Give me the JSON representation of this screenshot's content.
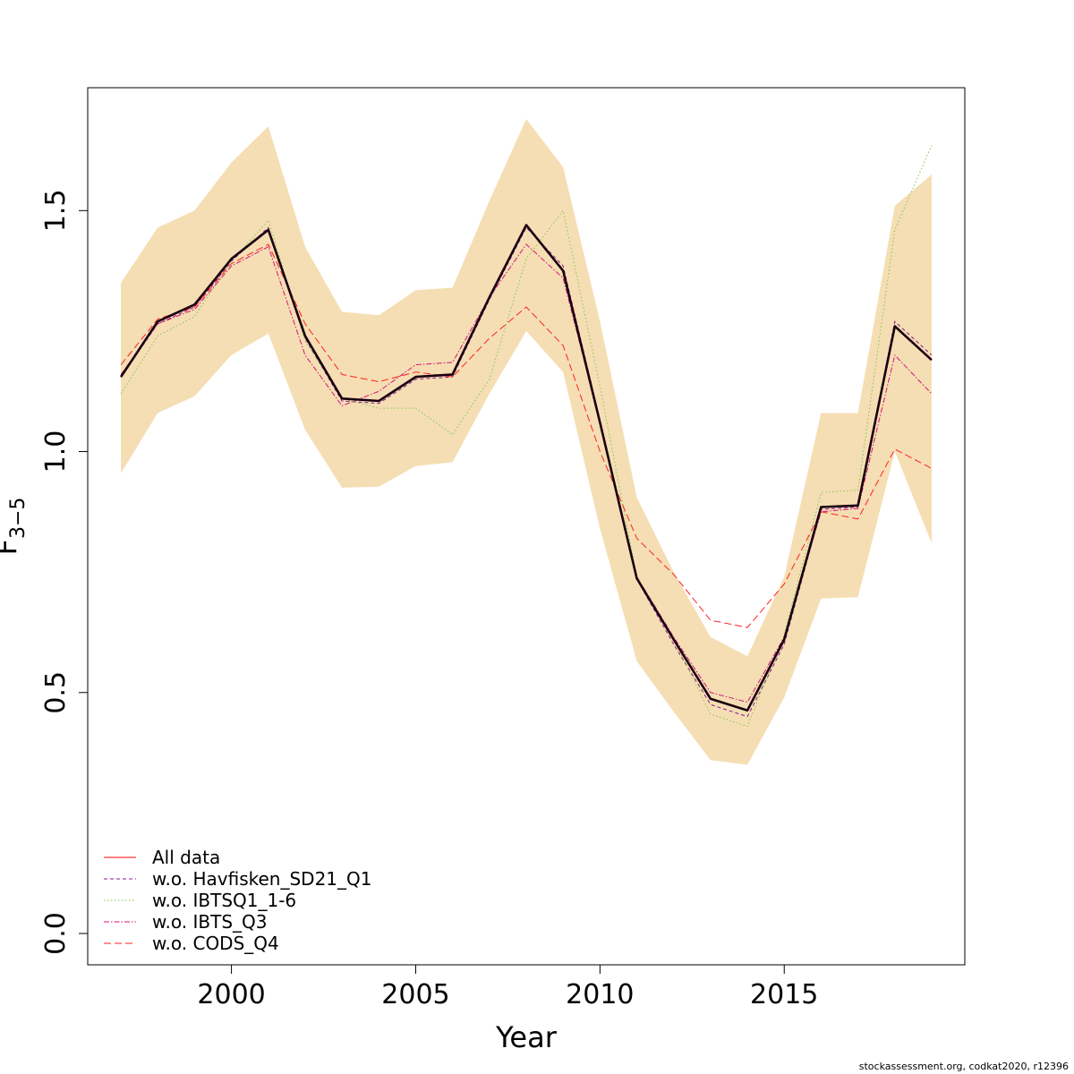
{
  "chart_data": {
    "type": "line",
    "title": "",
    "xlabel": "Year",
    "ylabel": "F",
    "ylabel_subscript": "3−5",
    "xlim": [
      1996.1,
      2019.9
    ],
    "ylim": [
      -0.065,
      1.755
    ],
    "x_ticks": [
      2000,
      2005,
      2010,
      2015
    ],
    "x_tick_labels": [
      "2000",
      "2005",
      "2010",
      "2015"
    ],
    "y_ticks": [
      0,
      0.5,
      1,
      1.5
    ],
    "y_tick_labels": [
      "0.0",
      "0.5",
      "1.0",
      "1.5"
    ],
    "x": [
      1997,
      1998,
      1999,
      2000,
      2001,
      2002,
      2003,
      2004,
      2005,
      2006,
      2007,
      2008,
      2009,
      2010,
      2011,
      2012,
      2013,
      2014,
      2015,
      2016,
      2017,
      2018,
      2019
    ],
    "band": {
      "color": "#f5deb3",
      "lower": [
        0.955,
        1.08,
        1.115,
        1.2,
        1.245,
        1.045,
        0.925,
        0.927,
        0.97,
        0.978,
        1.12,
        1.25,
        1.165,
        0.84,
        0.565,
        0.46,
        0.36,
        0.35,
        0.49,
        0.695,
        0.698,
        1.0,
        0.81
      ],
      "upper": [
        1.35,
        1.465,
        1.5,
        1.6,
        1.675,
        1.425,
        1.29,
        1.283,
        1.335,
        1.34,
        1.52,
        1.69,
        1.59,
        1.27,
        0.905,
        0.75,
        0.615,
        0.575,
        0.74,
        1.08,
        1.08,
        1.51,
        1.575
      ]
    },
    "main_line": {
      "name": "Estimate",
      "color": "#1a0011",
      "values": [
        1.155,
        1.27,
        1.305,
        1.4,
        1.46,
        1.24,
        1.11,
        1.105,
        1.155,
        1.16,
        1.32,
        1.47,
        1.375,
        1.06,
        0.737,
        0.61,
        0.487,
        0.463,
        0.61,
        0.885,
        0.888,
        1.26,
        1.19
      ]
    },
    "series": [
      {
        "name": "All data",
        "color": "#ff0000",
        "dash": "",
        "values": [
          1.155,
          1.27,
          1.305,
          1.4,
          1.46,
          1.24,
          1.11,
          1.105,
          1.155,
          1.16,
          1.32,
          1.47,
          1.375,
          1.06,
          0.737,
          0.61,
          0.487,
          0.463,
          0.61,
          0.885,
          0.888,
          1.26,
          1.19
        ]
      },
      {
        "name": "w.o. Havfisken_SD21_Q1",
        "color": "#8b1a8b",
        "dash": "4,3",
        "values": [
          1.155,
          1.265,
          1.3,
          1.395,
          1.465,
          1.235,
          1.105,
          1.1,
          1.15,
          1.155,
          1.315,
          1.465,
          1.385,
          1.065,
          0.735,
          0.6,
          0.475,
          0.45,
          0.6,
          0.88,
          0.885,
          1.27,
          1.2
        ]
      },
      {
        "name": "w.o. IBTSQ1_1-6",
        "color": "#7ec850",
        "dash": "1.5,2.5",
        "values": [
          1.12,
          1.24,
          1.28,
          1.395,
          1.48,
          1.23,
          1.11,
          1.09,
          1.09,
          1.035,
          1.15,
          1.4,
          1.5,
          1.135,
          0.74,
          0.61,
          0.455,
          0.43,
          0.62,
          0.915,
          0.92,
          1.46,
          1.635
        ]
      },
      {
        "name": "w.o. IBTS_Q3",
        "color": "#d4147a",
        "dash": "6,2,1.5,2",
        "values": [
          1.16,
          1.265,
          1.295,
          1.385,
          1.425,
          1.2,
          1.095,
          1.125,
          1.18,
          1.185,
          1.32,
          1.43,
          1.36,
          1.06,
          0.74,
          0.615,
          0.5,
          0.48,
          0.615,
          0.875,
          0.882,
          1.2,
          1.12
        ]
      },
      {
        "name": "w.o. CODS_Q4",
        "color": "#ff2020",
        "dash": "8,4",
        "values": [
          1.18,
          1.275,
          1.3,
          1.39,
          1.43,
          1.265,
          1.16,
          1.145,
          1.165,
          1.155,
          1.235,
          1.3,
          1.22,
          1.0,
          0.82,
          0.745,
          0.65,
          0.635,
          0.725,
          0.875,
          0.86,
          1.005,
          0.965
        ]
      }
    ],
    "legend": {
      "position": "bottom-left",
      "entries": [
        "All data",
        "w.o. Havfisken_SD21_Q1",
        "w.o. IBTSQ1_1-6",
        "w.o. IBTS_Q3",
        "w.o. CODS_Q4"
      ]
    }
  },
  "footer": {
    "caption": "stockassessment.org, codkat2020, r12396"
  }
}
